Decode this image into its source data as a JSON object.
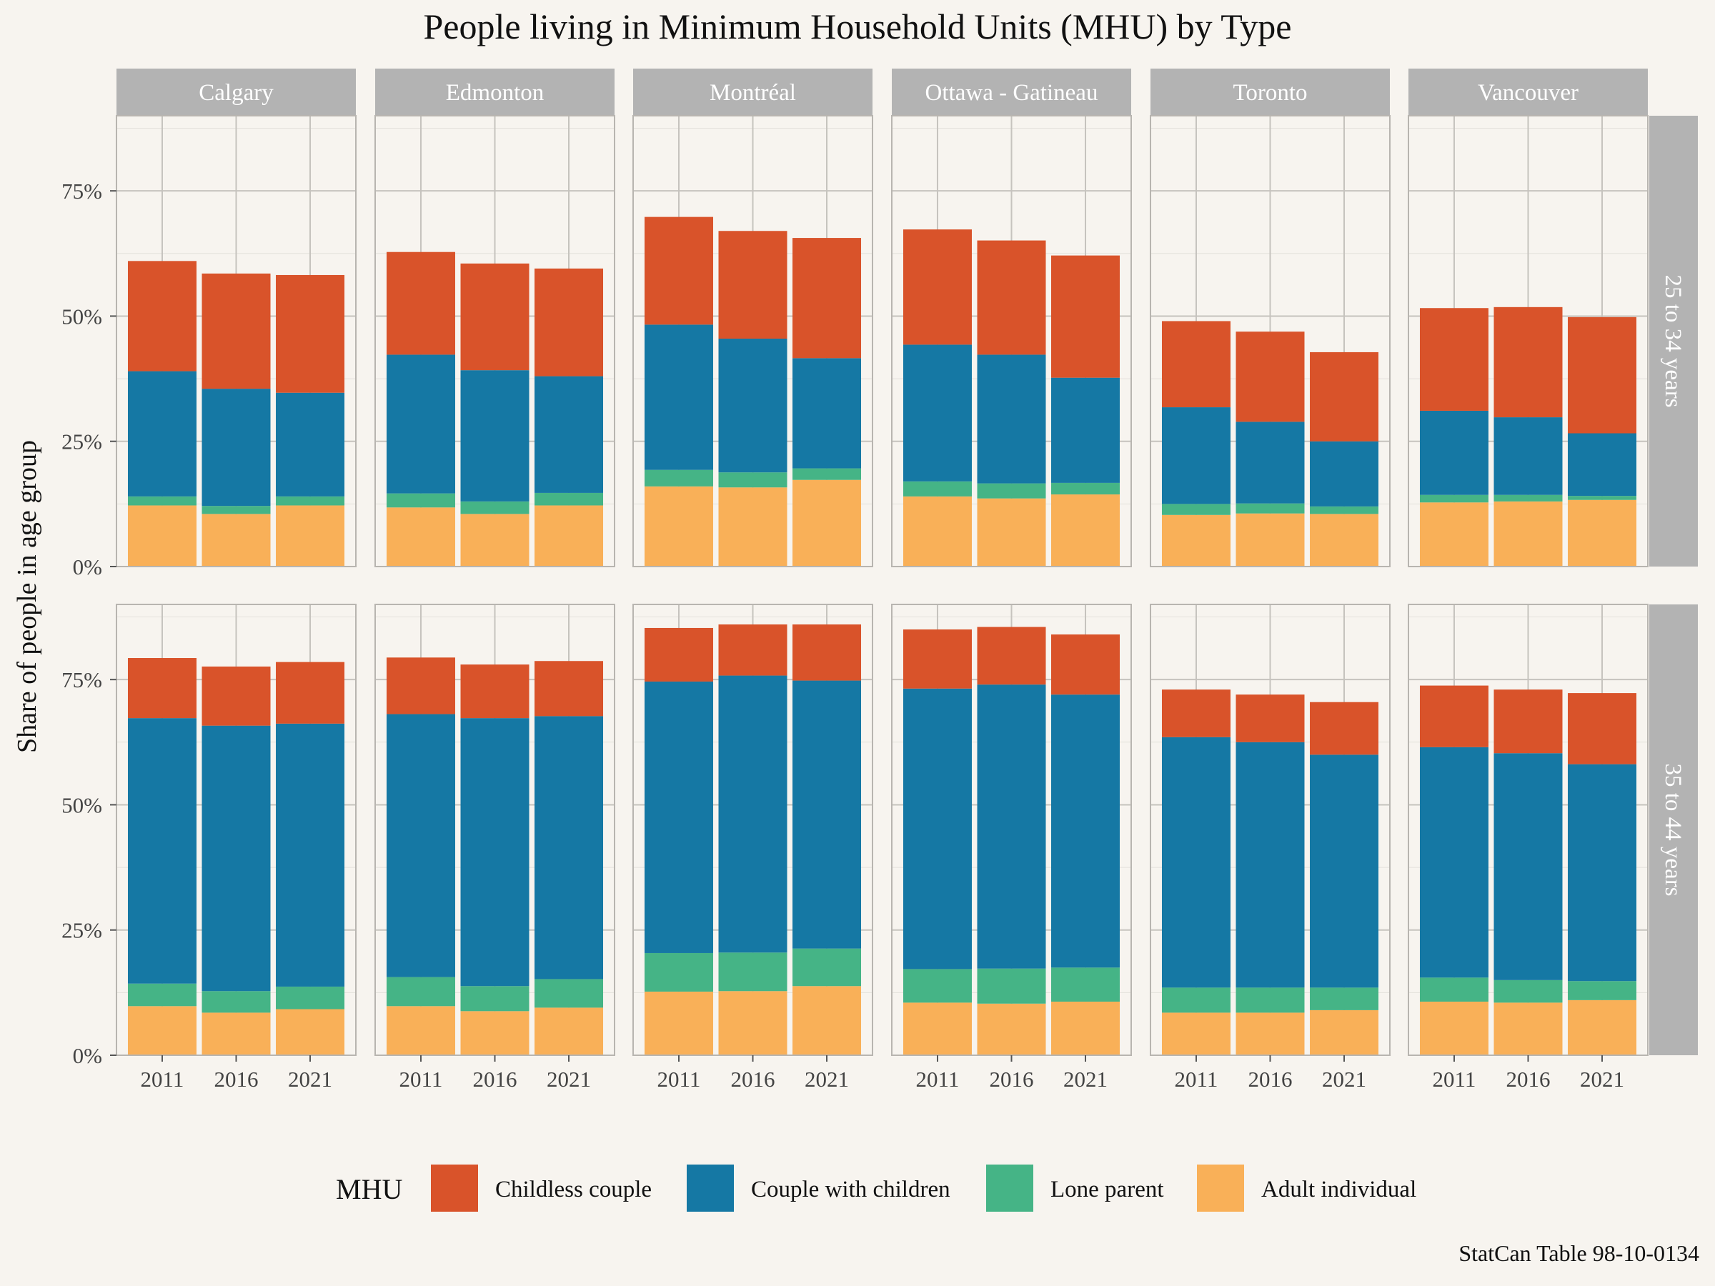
{
  "chart_data": {
    "type": "bar",
    "stacked": true,
    "title": "People living in Minimum Household Units (MHU) by Type",
    "ylabel": "Share of people in age group",
    "xlabel": "",
    "caption": "StatCan Table 98-10-0134",
    "legend_title": "MHU",
    "legend_position": "bottom",
    "grid": true,
    "ylim": [
      0,
      0.9
    ],
    "y_ticks": [
      0,
      0.25,
      0.5,
      0.75
    ],
    "y_tick_labels": [
      "0%",
      "25%",
      "50%",
      "75%"
    ],
    "facet_columns": [
      "Calgary",
      "Edmonton",
      "Montréal",
      "Ottawa - Gatineau",
      "Toronto",
      "Vancouver"
    ],
    "facet_rows": [
      "25 to 34 years",
      "35 to 44 years"
    ],
    "categories": [
      "2011",
      "2016",
      "2021"
    ],
    "series": [
      {
        "name": "Childless couple",
        "color": "#d9532a"
      },
      {
        "name": "Couple with children",
        "color": "#1578a4"
      },
      {
        "name": "Lone parent",
        "color": "#45b486"
      },
      {
        "name": "Adult individual",
        "color": "#f9b058"
      }
    ],
    "stack_order": [
      "Adult individual",
      "Lone parent",
      "Couple with children",
      "Childless couple"
    ],
    "panels": [
      {
        "row": "25 to 34 years",
        "column": "Calgary",
        "values": {
          "Adult individual": [
            0.122,
            0.105,
            0.122
          ],
          "Lone parent": [
            0.018,
            0.016,
            0.018
          ],
          "Couple with children": [
            0.25,
            0.234,
            0.207
          ],
          "Childless couple": [
            0.22,
            0.23,
            0.235
          ]
        }
      },
      {
        "row": "25 to 34 years",
        "column": "Edmonton",
        "values": {
          "Adult individual": [
            0.118,
            0.105,
            0.122
          ],
          "Lone parent": [
            0.028,
            0.025,
            0.025
          ],
          "Couple with children": [
            0.277,
            0.262,
            0.233
          ],
          "Childless couple": [
            0.205,
            0.213,
            0.215
          ]
        }
      },
      {
        "row": "25 to 34 years",
        "column": "Montréal",
        "values": {
          "Adult individual": [
            0.16,
            0.158,
            0.173
          ],
          "Lone parent": [
            0.033,
            0.03,
            0.023
          ],
          "Couple with children": [
            0.29,
            0.267,
            0.22
          ],
          "Childless couple": [
            0.215,
            0.215,
            0.24
          ]
        }
      },
      {
        "row": "25 to 34 years",
        "column": "Ottawa - Gatineau",
        "values": {
          "Adult individual": [
            0.14,
            0.136,
            0.144
          ],
          "Lone parent": [
            0.03,
            0.03,
            0.023
          ],
          "Couple with children": [
            0.273,
            0.257,
            0.21
          ],
          "Childless couple": [
            0.23,
            0.228,
            0.244
          ]
        }
      },
      {
        "row": "25 to 34 years",
        "column": "Toronto",
        "values": {
          "Adult individual": [
            0.103,
            0.106,
            0.105
          ],
          "Lone parent": [
            0.022,
            0.02,
            0.015
          ],
          "Couple with children": [
            0.193,
            0.163,
            0.13
          ],
          "Childless couple": [
            0.172,
            0.18,
            0.178
          ]
        }
      },
      {
        "row": "25 to 34 years",
        "column": "Vancouver",
        "values": {
          "Adult individual": [
            0.128,
            0.13,
            0.133
          ],
          "Lone parent": [
            0.015,
            0.013,
            0.008
          ],
          "Couple with children": [
            0.168,
            0.155,
            0.125
          ],
          "Childless couple": [
            0.205,
            0.22,
            0.232
          ]
        }
      },
      {
        "row": "35 to 44 years",
        "column": "Calgary",
        "values": {
          "Adult individual": [
            0.098,
            0.085,
            0.092
          ],
          "Lone parent": [
            0.045,
            0.043,
            0.045
          ],
          "Couple with children": [
            0.53,
            0.53,
            0.525
          ],
          "Childless couple": [
            0.12,
            0.118,
            0.123
          ]
        }
      },
      {
        "row": "35 to 44 years",
        "column": "Edmonton",
        "values": {
          "Adult individual": [
            0.098,
            0.088,
            0.095
          ],
          "Lone parent": [
            0.058,
            0.05,
            0.057
          ],
          "Couple with children": [
            0.525,
            0.535,
            0.525
          ],
          "Childless couple": [
            0.113,
            0.107,
            0.11
          ]
        }
      },
      {
        "row": "35 to 44 years",
        "column": "Montréal",
        "values": {
          "Adult individual": [
            0.127,
            0.128,
            0.138
          ],
          "Lone parent": [
            0.077,
            0.077,
            0.075
          ],
          "Couple with children": [
            0.542,
            0.553,
            0.535
          ],
          "Childless couple": [
            0.107,
            0.102,
            0.112
          ]
        }
      },
      {
        "row": "35 to 44 years",
        "column": "Ottawa - Gatineau",
        "values": {
          "Adult individual": [
            0.105,
            0.103,
            0.107
          ],
          "Lone parent": [
            0.067,
            0.07,
            0.068
          ],
          "Couple with children": [
            0.56,
            0.567,
            0.545
          ],
          "Childless couple": [
            0.118,
            0.115,
            0.12
          ]
        }
      },
      {
        "row": "35 to 44 years",
        "column": "Toronto",
        "values": {
          "Adult individual": [
            0.085,
            0.085,
            0.09
          ],
          "Lone parent": [
            0.05,
            0.05,
            0.045
          ],
          "Couple with children": [
            0.5,
            0.49,
            0.465
          ],
          "Childless couple": [
            0.095,
            0.095,
            0.105
          ]
        }
      },
      {
        "row": "35 to 44 years",
        "column": "Vancouver",
        "values": {
          "Adult individual": [
            0.107,
            0.105,
            0.11
          ],
          "Lone parent": [
            0.048,
            0.045,
            0.038
          ],
          "Couple with children": [
            0.46,
            0.453,
            0.433
          ],
          "Childless couple": [
            0.123,
            0.127,
            0.142
          ]
        }
      }
    ]
  }
}
